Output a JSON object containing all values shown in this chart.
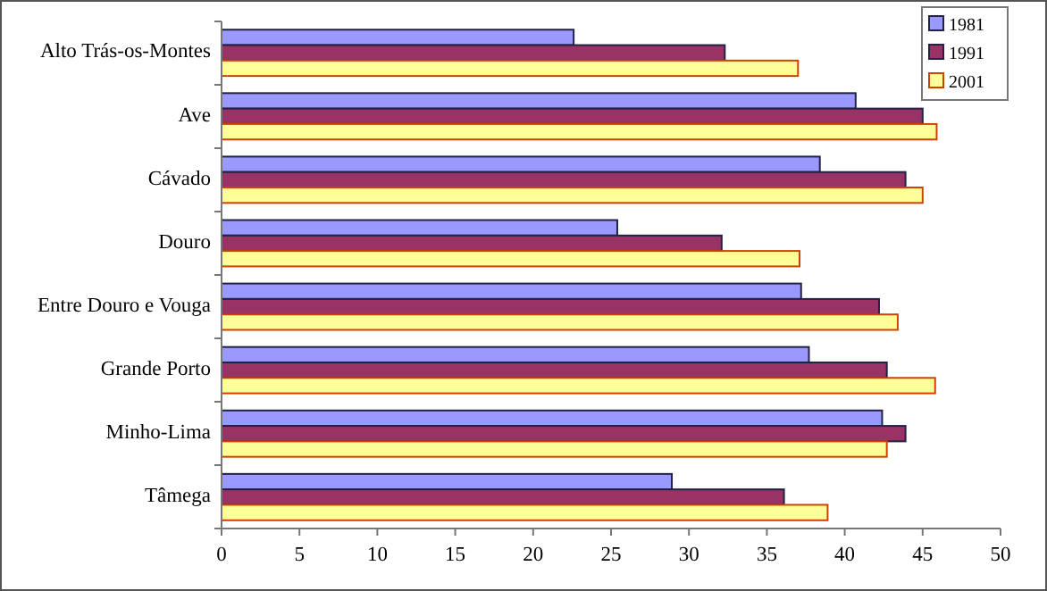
{
  "chart_data": {
    "type": "bar",
    "orientation": "horizontal",
    "categories": [
      "Alto Trás-os-Montes",
      "Ave",
      "Cávado",
      "Douro",
      "Entre Douro e Vouga",
      "Grande Porto",
      "Minho-Lima",
      "Tâmega"
    ],
    "series": [
      {
        "name": "1981",
        "color": "#9999ff",
        "values": [
          22.6,
          40.7,
          38.4,
          25.4,
          37.2,
          37.7,
          42.4,
          28.9
        ]
      },
      {
        "name": "1991",
        "color": "#993366",
        "values": [
          32.3,
          45.0,
          43.9,
          32.1,
          42.2,
          42.7,
          43.9,
          36.1
        ]
      },
      {
        "name": "2001",
        "color": "#ffff99",
        "values": [
          37.0,
          45.9,
          45.0,
          37.1,
          43.4,
          45.8,
          42.7,
          38.9
        ]
      }
    ],
    "xlim": [
      0,
      50
    ],
    "xticks": [
      0,
      5,
      10,
      15,
      20,
      25,
      30,
      35,
      40,
      45,
      50
    ],
    "grid": false,
    "legend": "top right"
  }
}
